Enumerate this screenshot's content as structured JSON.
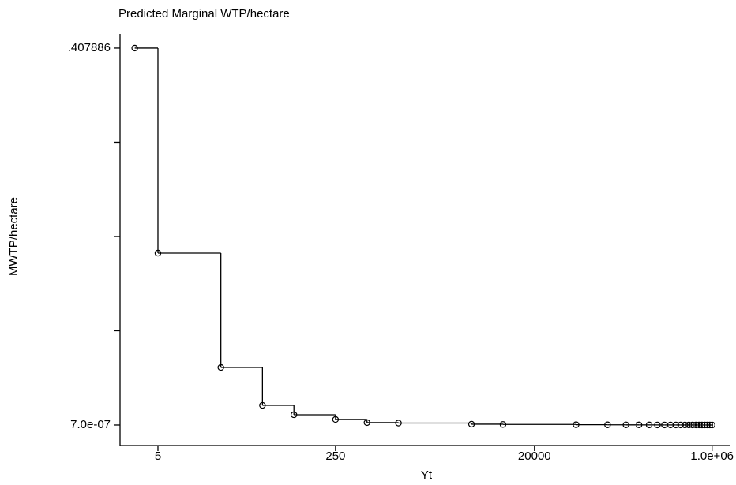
{
  "chart_data": {
    "type": "step",
    "title": "Predicted Marginal WTP/hectare",
    "x_label": "Yt",
    "y_label": "MWTP/hectare",
    "x": [
      3,
      5,
      20,
      50,
      100,
      250,
      500,
      1000,
      5000,
      10000,
      50000,
      100000,
      150000,
      200000,
      250000,
      300000,
      350000,
      400000,
      450000,
      500000,
      550000,
      600000,
      650000,
      700000,
      750000,
      800000,
      850000,
      900000,
      950000,
      1000000
    ],
    "series": [
      {
        "color": "#000000",
        "values": [
          0.407886,
          0.186,
          0.0623,
          0.0213,
          0.0111,
          0.006,
          0.0026,
          0.0021,
          0.0009,
          0.0006,
          0.0003,
          0.0002,
          0.00015,
          0.00012,
          0.0001,
          8e-05,
          7e-05,
          6e-05,
          5e-05,
          4e-05,
          3.5e-05,
          3e-05,
          2.5e-05,
          2e-05,
          1.5e-05,
          1e-05,
          7e-06,
          4e-06,
          2e-06,
          7e-07
        ]
      }
    ],
    "xlog": true,
    "xlim": [
      2.17,
      1500000
    ],
    "xticks": [
      5,
      250,
      20000,
      {
        "value": 1000000,
        "label": "1.0e+06"
      }
    ],
    "ylim": [
      -0.0222,
      0.4232
    ],
    "yticks": [
      {
        "value": 7e-07,
        "label": "7.0e-07"
      },
      {
        "value": 0.407886,
        "label": ".407886"
      }
    ],
    "yminor_ticks": [
      0.10197,
      0.20394,
      0.30591
    ]
  }
}
